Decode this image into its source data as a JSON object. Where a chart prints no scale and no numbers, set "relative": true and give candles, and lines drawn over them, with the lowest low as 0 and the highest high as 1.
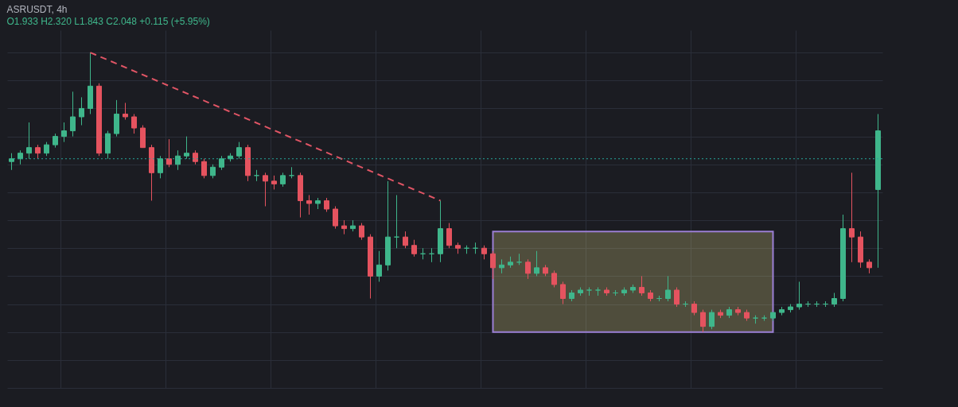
{
  "chart_data": {
    "type": "candlestick",
    "title": "ASRUSDT, 4h",
    "subtitle": "O1.933 H2.320 L1.843 C2.048 +0.115 (+5.95%)",
    "relative": true,
    "grid": true,
    "categories": [
      null,
      null,
      null,
      null,
      null,
      null,
      null,
      null,
      null,
      null,
      null,
      null,
      null,
      null,
      null,
      null,
      null,
      null,
      null,
      null,
      null,
      null,
      null,
      null,
      null,
      null,
      null,
      null,
      null,
      null,
      null,
      null,
      null,
      null,
      null,
      null,
      null,
      null,
      null,
      null,
      null,
      null,
      null,
      null,
      null,
      null,
      null,
      null,
      null,
      null,
      null,
      null,
      null,
      null,
      null,
      null,
      null,
      null,
      null,
      null,
      null,
      null,
      null,
      null,
      null,
      null,
      null,
      null,
      null,
      null,
      null,
      null,
      null,
      null,
      null,
      null,
      null,
      null,
      null,
      null,
      null,
      null,
      null,
      null,
      null,
      null,
      null,
      null,
      null,
      null,
      null,
      null,
      null,
      null,
      null,
      null,
      null,
      null,
      null,
      null
    ],
    "ohlc": [
      [
        0.61,
        0.64,
        0.58,
        0.62
      ],
      [
        0.62,
        0.65,
        0.6,
        0.64
      ],
      [
        0.64,
        0.75,
        0.62,
        0.66
      ],
      [
        0.66,
        0.67,
        0.62,
        0.64
      ],
      [
        0.64,
        0.68,
        0.63,
        0.67
      ],
      [
        0.67,
        0.71,
        0.66,
        0.7
      ],
      [
        0.7,
        0.75,
        0.68,
        0.72
      ],
      [
        0.72,
        0.86,
        0.7,
        0.77
      ],
      [
        0.77,
        0.84,
        0.74,
        0.8
      ],
      [
        0.8,
        1.0,
        0.78,
        0.88
      ],
      [
        0.88,
        0.89,
        0.63,
        0.64
      ],
      [
        0.64,
        0.72,
        0.62,
        0.71
      ],
      [
        0.71,
        0.83,
        0.7,
        0.78
      ],
      [
        0.78,
        0.82,
        0.76,
        0.77
      ],
      [
        0.77,
        0.78,
        0.71,
        0.73
      ],
      [
        0.73,
        0.74,
        0.66,
        0.66
      ],
      [
        0.66,
        0.67,
        0.47,
        0.57
      ],
      [
        0.57,
        0.63,
        0.55,
        0.62
      ],
      [
        0.62,
        0.69,
        0.59,
        0.6
      ],
      [
        0.6,
        0.65,
        0.58,
        0.63
      ],
      [
        0.63,
        0.7,
        0.62,
        0.64
      ],
      [
        0.64,
        0.65,
        0.6,
        0.61
      ],
      [
        0.61,
        0.62,
        0.55,
        0.56
      ],
      [
        0.56,
        0.6,
        0.55,
        0.59
      ],
      [
        0.59,
        0.63,
        0.58,
        0.62
      ],
      [
        0.62,
        0.64,
        0.61,
        0.63
      ],
      [
        0.63,
        0.68,
        0.62,
        0.66
      ],
      [
        0.66,
        0.67,
        0.54,
        0.56
      ],
      [
        0.56,
        0.58,
        0.54,
        0.56
      ],
      [
        0.56,
        0.57,
        0.45,
        0.54
      ],
      [
        0.54,
        0.56,
        0.51,
        0.53
      ],
      [
        0.53,
        0.57,
        0.52,
        0.56
      ],
      [
        0.56,
        0.59,
        0.55,
        0.56
      ],
      [
        0.56,
        0.57,
        0.41,
        0.47
      ],
      [
        0.47,
        0.49,
        0.42,
        0.46
      ],
      [
        0.46,
        0.48,
        0.44,
        0.47
      ],
      [
        0.47,
        0.48,
        0.43,
        0.44
      ],
      [
        0.44,
        0.45,
        0.37,
        0.38
      ],
      [
        0.38,
        0.4,
        0.35,
        0.37
      ],
      [
        0.37,
        0.4,
        0.36,
        0.38
      ],
      [
        0.38,
        0.39,
        0.33,
        0.34
      ],
      [
        0.34,
        0.35,
        0.12,
        0.2
      ],
      [
        0.2,
        0.29,
        0.18,
        0.24
      ],
      [
        0.24,
        0.54,
        0.22,
        0.34
      ],
      [
        0.34,
        0.49,
        0.3,
        0.34
      ],
      [
        0.34,
        0.36,
        0.3,
        0.31
      ],
      [
        0.31,
        0.33,
        0.27,
        0.28
      ],
      [
        0.28,
        0.3,
        0.26,
        0.28
      ],
      [
        0.28,
        0.3,
        0.25,
        0.28
      ],
      [
        0.28,
        0.47,
        0.25,
        0.37
      ],
      [
        0.37,
        0.39,
        0.3,
        0.31
      ],
      [
        0.31,
        0.32,
        0.28,
        0.3
      ],
      [
        0.3,
        0.31,
        0.28,
        0.3
      ],
      [
        0.3,
        0.32,
        0.28,
        0.3
      ],
      [
        0.3,
        0.31,
        0.26,
        0.28
      ],
      [
        0.28,
        0.29,
        0.19,
        0.23
      ],
      [
        0.23,
        0.26,
        0.21,
        0.24
      ],
      [
        0.24,
        0.27,
        0.23,
        0.25
      ],
      [
        0.25,
        0.28,
        0.24,
        0.25
      ],
      [
        0.25,
        0.26,
        0.19,
        0.21
      ],
      [
        0.21,
        0.29,
        0.2,
        0.23
      ],
      [
        0.23,
        0.24,
        0.2,
        0.21
      ],
      [
        0.21,
        0.22,
        0.16,
        0.17
      ],
      [
        0.17,
        0.18,
        0.1,
        0.12
      ],
      [
        0.12,
        0.15,
        0.11,
        0.14
      ],
      [
        0.14,
        0.16,
        0.13,
        0.15
      ],
      [
        0.15,
        0.16,
        0.13,
        0.15
      ],
      [
        0.15,
        0.16,
        0.13,
        0.15
      ],
      [
        0.15,
        0.16,
        0.13,
        0.14
      ],
      [
        0.14,
        0.15,
        0.13,
        0.14
      ],
      [
        0.14,
        0.16,
        0.13,
        0.15
      ],
      [
        0.15,
        0.17,
        0.14,
        0.16
      ],
      [
        0.16,
        0.2,
        0.13,
        0.14
      ],
      [
        0.14,
        0.15,
        0.11,
        0.12
      ],
      [
        0.12,
        0.13,
        0.11,
        0.12
      ],
      [
        0.12,
        0.2,
        0.11,
        0.15
      ],
      [
        0.15,
        0.16,
        0.09,
        0.1
      ],
      [
        0.1,
        0.11,
        0.09,
        0.1
      ],
      [
        0.1,
        0.11,
        0.06,
        0.07
      ],
      [
        0.07,
        0.08,
        0.0,
        0.02
      ],
      [
        0.02,
        0.08,
        0.01,
        0.07
      ],
      [
        0.07,
        0.08,
        0.05,
        0.06
      ],
      [
        0.06,
        0.09,
        0.05,
        0.08
      ],
      [
        0.08,
        0.09,
        0.06,
        0.07
      ],
      [
        0.07,
        0.08,
        0.04,
        0.05
      ],
      [
        0.05,
        0.06,
        0.03,
        0.05
      ],
      [
        0.05,
        0.06,
        0.04,
        0.05
      ],
      [
        0.05,
        0.07,
        0.04,
        0.07
      ],
      [
        0.07,
        0.09,
        0.06,
        0.08
      ],
      [
        0.08,
        0.1,
        0.07,
        0.09
      ],
      [
        0.09,
        0.18,
        0.08,
        0.1
      ],
      [
        0.1,
        0.11,
        0.09,
        0.1
      ],
      [
        0.1,
        0.11,
        0.09,
        0.1
      ],
      [
        0.1,
        0.11,
        0.09,
        0.1
      ],
      [
        0.1,
        0.14,
        0.09,
        0.12
      ],
      [
        0.12,
        0.42,
        0.11,
        0.37
      ],
      [
        0.37,
        0.57,
        0.25,
        0.34
      ],
      [
        0.34,
        0.36,
        0.23,
        0.25
      ],
      [
        0.25,
        0.26,
        0.21,
        0.23
      ],
      [
        0.51,
        0.78,
        0.23,
        0.72
      ]
    ],
    "series": [
      {
        "type": "line",
        "color": "#e05565",
        "line_style": "dashed",
        "values": [
          null,
          null,
          null,
          null,
          null,
          null,
          null,
          null,
          null,
          1.0,
          null,
          null,
          null,
          null,
          null,
          null,
          null,
          null,
          null,
          null,
          null,
          null,
          null,
          null,
          null,
          null,
          null,
          null,
          null,
          null,
          null,
          null,
          null,
          null,
          null,
          null,
          null,
          null,
          null,
          null,
          null,
          null,
          null,
          null,
          null,
          null,
          null,
          null,
          null,
          0.47,
          null,
          null,
          null,
          null,
          null,
          null,
          null,
          null,
          null,
          null,
          null,
          null,
          null,
          null,
          null,
          null,
          null,
          null,
          null,
          null,
          null,
          null,
          null,
          null,
          null,
          null,
          null,
          null,
          null,
          null,
          null,
          null,
          null,
          null,
          null,
          null,
          null,
          null,
          null,
          null,
          null,
          null,
          null,
          null,
          null,
          null,
          null,
          null,
          null,
          null
        ]
      }
    ],
    "bands": [
      {
        "axis": "y",
        "from": 0,
        "to": 0.36,
        "color": "#ebe18c"
      }
    ],
    "ref_lines": [
      {
        "axis": "y",
        "value": 0.62,
        "color": "#26a69a",
        "line_style": "dotted"
      }
    ]
  }
}
